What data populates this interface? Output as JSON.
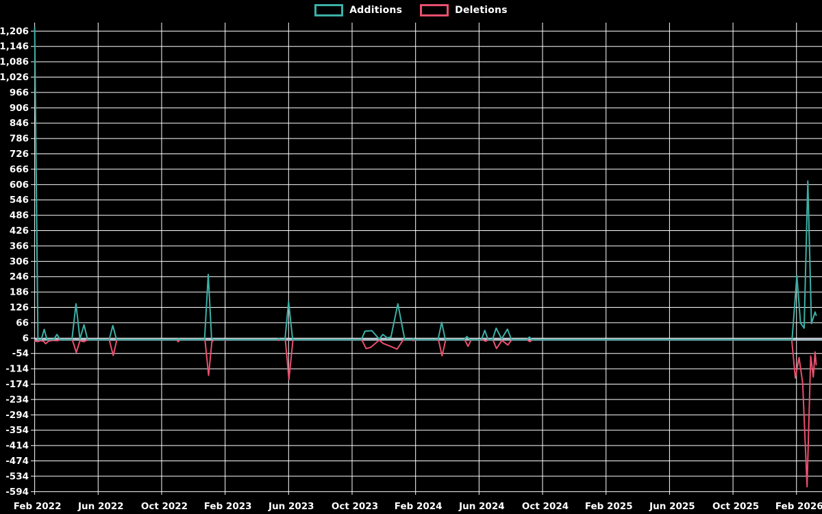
{
  "legend": [
    {
      "label": "Additions",
      "color": "#3cb1a7"
    },
    {
      "label": "Deletions",
      "color": "#ea506e"
    }
  ],
  "colors": {
    "background": "#000000",
    "grid": "#ffffff",
    "text": "#ffffff",
    "zero_line": "#a9c0cb",
    "additions": "#3cb1a7",
    "deletions": "#ea506e"
  },
  "chart_data": {
    "type": "line",
    "title": "",
    "grid": true,
    "legend_position": "top-center",
    "x_axis": {
      "tick_labels": [
        "Feb 2022",
        "Jun 2022",
        "Oct 2022",
        "Feb 2023",
        "Jun 2023",
        "Oct 2023",
        "Feb 2024",
        "Jun 2024",
        "Oct 2024",
        "Feb 2025",
        "Jun 2025",
        "Oct 2025",
        "Feb 2026"
      ],
      "tick_interval_months": 4,
      "x_unit": "weeks_since_first_point",
      "x_range_weeks": [
        0,
        215.6
      ]
    },
    "y_axis": {
      "tick_labels": [
        "1,206",
        "1,146",
        "1,086",
        "1,026",
        "966",
        "906",
        "846",
        "786",
        "726",
        "666",
        "606",
        "546",
        "486",
        "426",
        "366",
        "306",
        "246",
        "186",
        "126",
        "66",
        "6",
        "-54",
        "-114",
        "-174",
        "-234",
        "-294",
        "-354",
        "-414",
        "-474",
        "-534",
        "-594"
      ],
      "tick_values": [
        1206,
        1146,
        1086,
        1026,
        966,
        906,
        846,
        786,
        726,
        666,
        606,
        546,
        486,
        426,
        366,
        306,
        246,
        186,
        126,
        66,
        6,
        -54,
        -114,
        -174,
        -234,
        -294,
        -354,
        -414,
        -474,
        -534,
        -594
      ],
      "min": -594,
      "max": 1206,
      "step": 60
    },
    "series": [
      {
        "name": "Additions",
        "color": "#3cb1a7",
        "points": [
          [
            0,
            1220
          ],
          [
            0.9,
            0
          ],
          [
            1.8,
            0
          ],
          [
            2.6,
            40
          ],
          [
            3.4,
            0
          ],
          [
            5.2,
            0
          ],
          [
            6.1,
            20
          ],
          [
            7,
            0
          ],
          [
            10.2,
            0
          ],
          [
            11.3,
            140
          ],
          [
            12.4,
            2
          ],
          [
            13.5,
            58
          ],
          [
            14.5,
            0
          ],
          [
            20.4,
            0
          ],
          [
            21.4,
            55
          ],
          [
            22.4,
            0
          ],
          [
            38.9,
            0
          ],
          [
            39.4,
            4
          ],
          [
            39.9,
            0
          ],
          [
            46.5,
            0
          ],
          [
            47.5,
            255
          ],
          [
            48.4,
            8
          ],
          [
            49,
            0
          ],
          [
            66.4,
            0
          ],
          [
            66.8,
            5
          ],
          [
            67.2,
            0
          ],
          [
            68.5,
            0
          ],
          [
            69.5,
            148
          ],
          [
            70.6,
            0
          ],
          [
            89.4,
            0
          ],
          [
            90.4,
            33
          ],
          [
            92.3,
            35
          ],
          [
            94.3,
            2
          ],
          [
            95.3,
            20
          ],
          [
            96.5,
            7
          ],
          [
            97.5,
            10
          ],
          [
            99.4,
            140
          ],
          [
            101.3,
            0
          ],
          [
            103.2,
            0
          ],
          [
            103.6,
            5
          ],
          [
            104,
            0
          ],
          [
            110.4,
            0
          ],
          [
            111.4,
            68
          ],
          [
            112.4,
            0
          ],
          [
            117.5,
            0
          ],
          [
            118.3,
            12
          ],
          [
            119.1,
            0
          ],
          [
            122.3,
            0
          ],
          [
            123.2,
            36
          ],
          [
            124.1,
            0
          ],
          [
            125.3,
            0
          ],
          [
            126.3,
            45
          ],
          [
            127.8,
            3
          ],
          [
            129.4,
            41
          ],
          [
            130.5,
            0
          ],
          [
            134.6,
            0
          ],
          [
            135.4,
            10
          ],
          [
            136.2,
            0
          ],
          [
            207.3,
            0
          ],
          [
            208.6,
            250
          ],
          [
            209.6,
            65
          ],
          [
            210.6,
            45
          ],
          [
            211.6,
            620
          ],
          [
            212.6,
            63
          ],
          [
            213.6,
            108
          ],
          [
            213.9,
            95
          ]
        ]
      },
      {
        "name": "Deletions",
        "color": "#ea506e",
        "points": [
          [
            0,
            -5
          ],
          [
            0.8,
            -8
          ],
          [
            1.6,
            -4
          ],
          [
            2.4,
            -6
          ],
          [
            3,
            -16
          ],
          [
            3.8,
            -6
          ],
          [
            5,
            -3
          ],
          [
            6.2,
            -4
          ],
          [
            7.2,
            0
          ],
          [
            10.3,
            0
          ],
          [
            11.4,
            -50
          ],
          [
            12.4,
            -4
          ],
          [
            13.5,
            -8
          ],
          [
            14.5,
            0
          ],
          [
            20.4,
            0
          ],
          [
            21.5,
            -62
          ],
          [
            22.5,
            0
          ],
          [
            38.8,
            0
          ],
          [
            39.3,
            -8
          ],
          [
            39.8,
            0
          ],
          [
            46.6,
            0
          ],
          [
            47.6,
            -140
          ],
          [
            48.5,
            -8
          ],
          [
            49.1,
            0
          ],
          [
            51.8,
            0
          ],
          [
            52.2,
            -4
          ],
          [
            52.6,
            0
          ],
          [
            66.4,
            0
          ],
          [
            66.8,
            -3
          ],
          [
            67.2,
            0
          ],
          [
            68.6,
            0
          ],
          [
            69.6,
            -155
          ],
          [
            70.7,
            0
          ],
          [
            89.5,
            0
          ],
          [
            90.7,
            -35
          ],
          [
            92,
            -30
          ],
          [
            94.3,
            -2
          ],
          [
            95.4,
            -15
          ],
          [
            97.2,
            -25
          ],
          [
            99.2,
            -37
          ],
          [
            100.9,
            0
          ],
          [
            103.2,
            0
          ],
          [
            103.6,
            -4
          ],
          [
            104,
            0
          ],
          [
            110.5,
            0
          ],
          [
            111.5,
            -63
          ],
          [
            112.5,
            0
          ],
          [
            117.7,
            0
          ],
          [
            118.6,
            -26
          ],
          [
            119.5,
            0
          ],
          [
            122.5,
            0
          ],
          [
            123.4,
            -6
          ],
          [
            124.3,
            0
          ],
          [
            125.4,
            0
          ],
          [
            126.4,
            -35
          ],
          [
            127.9,
            -3
          ],
          [
            129.5,
            -21
          ],
          [
            130.6,
            0
          ],
          [
            134.7,
            0
          ],
          [
            135.5,
            -8
          ],
          [
            136.3,
            0
          ],
          [
            207.2,
            0
          ],
          [
            208.2,
            -150
          ],
          [
            209.2,
            -70
          ],
          [
            210.2,
            -170
          ],
          [
            211.4,
            -575
          ],
          [
            212.4,
            -64
          ],
          [
            213.1,
            -146
          ],
          [
            213.6,
            -48
          ],
          [
            213.9,
            -98
          ]
        ]
      }
    ]
  }
}
